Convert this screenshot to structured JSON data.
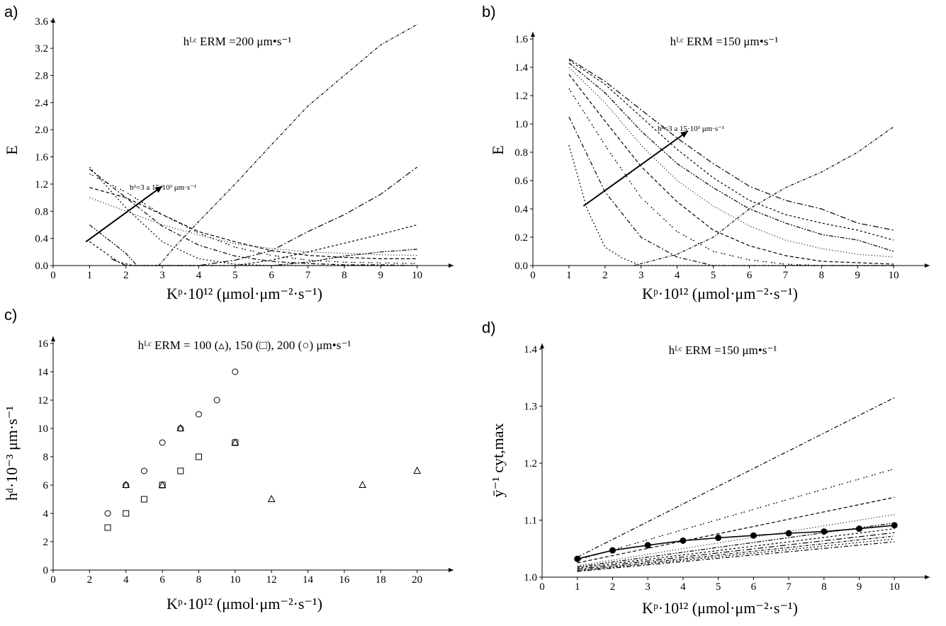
{
  "chart_data": [
    {
      "id": "a",
      "panel_label": "a)",
      "type": "line",
      "title": "hᴸᶜ ERM =200 μm•s⁻¹",
      "xlabel": "Kᵖ·10¹² (μmol·μm⁻²·s⁻¹)",
      "ylabel": "E",
      "xlim": [
        0,
        11
      ],
      "ylim": [
        0,
        3.65
      ],
      "xticks": [
        0,
        1,
        2,
        3,
        4,
        5,
        6,
        7,
        8,
        9,
        10
      ],
      "yticks": [
        0.0,
        0.4,
        0.8,
        1.2,
        1.6,
        2.0,
        2.4,
        2.8,
        3.2,
        3.6
      ],
      "ytick_decimals": 1,
      "annotation": "hᵈ=3 a 15·10³ μm·s⁻¹",
      "arrow": {
        "from": [
          0.9,
          0.35
        ],
        "to": [
          3.0,
          1.17
        ]
      },
      "series": [
        {
          "values": [
            [
              1,
              1.45
            ],
            [
              2,
              0.85
            ],
            [
              3,
              0.35
            ],
            [
              4,
              0.1
            ],
            [
              5,
              0.02
            ],
            [
              6,
              0.0
            ],
            [
              7,
              0.0
            ],
            [
              8,
              0.0
            ],
            [
              9,
              0.0
            ],
            [
              10,
              0.0
            ]
          ]
        },
        {
          "values": [
            [
              1,
              1.42
            ],
            [
              2,
              1.0
            ],
            [
              3,
              0.58
            ],
            [
              4,
              0.3
            ],
            [
              5,
              0.14
            ],
            [
              6,
              0.06
            ],
            [
              7,
              0.03
            ],
            [
              8,
              0.01
            ],
            [
              9,
              0.01
            ],
            [
              10,
              0.0
            ]
          ]
        },
        {
          "values": [
            [
              1,
              1.35
            ],
            [
              2,
              1.08
            ],
            [
              3,
              0.75
            ],
            [
              4,
              0.48
            ],
            [
              5,
              0.27
            ],
            [
              6,
              0.15
            ],
            [
              7,
              0.08
            ],
            [
              8,
              0.05
            ],
            [
              9,
              0.04
            ],
            [
              10,
              0.03
            ]
          ]
        },
        {
          "values": [
            [
              1,
              1.15
            ],
            [
              2,
              1.0
            ],
            [
              3,
              0.75
            ],
            [
              4,
              0.5
            ],
            [
              5,
              0.35
            ],
            [
              6,
              0.22
            ],
            [
              7,
              0.15
            ],
            [
              8,
              0.12
            ],
            [
              9,
              0.1
            ],
            [
              10,
              0.1
            ]
          ]
        },
        {
          "values": [
            [
              1,
              1.0
            ],
            [
              2,
              0.8
            ],
            [
              3,
              0.6
            ],
            [
              4,
              0.45
            ],
            [
              5,
              0.32
            ],
            [
              6,
              0.25
            ],
            [
              7,
              0.2
            ],
            [
              8,
              0.18
            ],
            [
              9,
              0.16
            ],
            [
              10,
              0.15
            ]
          ]
        },
        {
          "values": [
            [
              1,
              0.6
            ],
            [
              2,
              0.18
            ],
            [
              2.3,
              0.0
            ],
            [
              5,
              0.0
            ],
            [
              6,
              0.0
            ],
            [
              7,
              0.05
            ],
            [
              8,
              0.14
            ],
            [
              9,
              0.2
            ],
            [
              10,
              0.24
            ]
          ]
        },
        {
          "values": [
            [
              1,
              0.35
            ],
            [
              1.8,
              0.05
            ],
            [
              2.2,
              0.0
            ],
            [
              5,
              0.0
            ],
            [
              6,
              0.08
            ],
            [
              7,
              0.2
            ],
            [
              8,
              0.33
            ],
            [
              9,
              0.46
            ],
            [
              10,
              0.6
            ]
          ]
        },
        {
          "values": [
            [
              1.6,
              0.1
            ],
            [
              2,
              0.0
            ],
            [
              4,
              0.0
            ],
            [
              5,
              0.08
            ],
            [
              6,
              0.22
            ],
            [
              7,
              0.5
            ],
            [
              8,
              0.75
            ],
            [
              9,
              1.05
            ],
            [
              10,
              1.45
            ]
          ]
        },
        {
          "values": [
            [
              2.9,
              0.0
            ],
            [
              3.3,
              0.25
            ],
            [
              4,
              0.65
            ],
            [
              5,
              1.2
            ],
            [
              6,
              1.78
            ],
            [
              7,
              2.35
            ],
            [
              8,
              2.8
            ],
            [
              9,
              3.25
            ],
            [
              10,
              3.55
            ]
          ]
        }
      ]
    },
    {
      "id": "b",
      "panel_label": "b)",
      "type": "line",
      "title": "hᴸᶜ ERM =150 μm•s⁻¹",
      "xlabel": "Kᵖ·10¹² (μmol·μm⁻²·s⁻¹)",
      "ylabel": "E",
      "xlim": [
        0,
        11
      ],
      "ylim": [
        0,
        1.65
      ],
      "xticks": [
        0,
        1,
        2,
        3,
        4,
        5,
        6,
        7,
        8,
        9,
        10
      ],
      "yticks": [
        0.0,
        0.2,
        0.4,
        0.6,
        0.8,
        1.0,
        1.2,
        1.4,
        1.6
      ],
      "ytick_decimals": 1,
      "annotation": "hᵈ=3 a 15·10³ μm·s⁻¹",
      "arrow": {
        "from": [
          1.4,
          0.42
        ],
        "to": [
          4.3,
          0.95
        ]
      },
      "series": [
        {
          "values": [
            [
              1,
              0.85
            ],
            [
              1.5,
              0.4
            ],
            [
              2,
              0.13
            ],
            [
              2.5,
              0.05
            ],
            [
              3,
              0.0
            ],
            [
              10,
              0.0
            ]
          ]
        },
        {
          "values": [
            [
              1,
              1.05
            ],
            [
              2,
              0.52
            ],
            [
              3,
              0.2
            ],
            [
              4,
              0.06
            ],
            [
              5,
              0.0
            ],
            [
              10,
              0.0
            ]
          ]
        },
        {
          "values": [
            [
              1,
              1.25
            ],
            [
              2,
              0.85
            ],
            [
              3,
              0.48
            ],
            [
              4,
              0.24
            ],
            [
              5,
              0.1
            ],
            [
              6,
              0.04
            ],
            [
              7,
              0.01
            ],
            [
              8,
              0.0
            ],
            [
              10,
              0.0
            ]
          ]
        },
        {
          "values": [
            [
              1,
              1.35
            ],
            [
              2,
              1.02
            ],
            [
              3,
              0.7
            ],
            [
              4,
              0.45
            ],
            [
              5,
              0.25
            ],
            [
              6,
              0.14
            ],
            [
              7,
              0.07
            ],
            [
              8,
              0.03
            ],
            [
              9,
              0.02
            ],
            [
              10,
              0.01
            ]
          ]
        },
        {
          "values": [
            [
              1,
              1.4
            ],
            [
              2,
              1.15
            ],
            [
              3,
              0.85
            ],
            [
              4,
              0.6
            ],
            [
              5,
              0.42
            ],
            [
              6,
              0.28
            ],
            [
              7,
              0.18
            ],
            [
              8,
              0.12
            ],
            [
              9,
              0.08
            ],
            [
              10,
              0.06
            ]
          ]
        },
        {
          "values": [
            [
              1,
              1.43
            ],
            [
              2,
              1.22
            ],
            [
              3,
              0.95
            ],
            [
              4,
              0.72
            ],
            [
              5,
              0.55
            ],
            [
              6,
              0.4
            ],
            [
              7,
              0.3
            ],
            [
              8,
              0.22
            ],
            [
              9,
              0.18
            ],
            [
              10,
              0.1
            ]
          ]
        },
        {
          "values": [
            [
              1,
              1.45
            ],
            [
              2,
              1.28
            ],
            [
              3,
              1.05
            ],
            [
              4,
              0.82
            ],
            [
              5,
              0.62
            ],
            [
              6,
              0.46
            ],
            [
              7,
              0.36
            ],
            [
              8,
              0.3
            ],
            [
              9,
              0.25
            ],
            [
              10,
              0.18
            ]
          ]
        },
        {
          "values": [
            [
              1,
              1.46
            ],
            [
              2,
              1.3
            ],
            [
              3,
              1.1
            ],
            [
              4,
              0.9
            ],
            [
              5,
              0.72
            ],
            [
              6,
              0.56
            ],
            [
              7,
              0.46
            ],
            [
              8,
              0.4
            ],
            [
              9,
              0.3
            ],
            [
              10,
              0.25
            ]
          ]
        },
        {
          "values": [
            [
              2.8,
              0.0
            ],
            [
              4,
              0.08
            ],
            [
              5,
              0.2
            ],
            [
              6,
              0.4
            ],
            [
              7,
              0.55
            ],
            [
              8,
              0.66
            ],
            [
              9,
              0.8
            ],
            [
              10,
              0.98
            ]
          ]
        }
      ]
    },
    {
      "id": "c",
      "panel_label": "c)",
      "type": "scatter",
      "title": "hᴸᶜ ERM = 100 (▵), 150 (□), 200 (○) μm•s⁻¹",
      "xlabel": "Kᵖ·10¹² (μmol·μm⁻²·s⁻¹)",
      "ylabel": "hᵈ·10⁻³ μm·s⁻¹",
      "xlim": [
        0,
        22
      ],
      "ylim": [
        0,
        16.5
      ],
      "xticks": [
        0,
        2,
        4,
        6,
        8,
        10,
        12,
        14,
        16,
        18,
        20
      ],
      "yticks": [
        0,
        2,
        4,
        6,
        8,
        10,
        12,
        14,
        16
      ],
      "ytick_decimals": 0,
      "series": [
        {
          "marker": "triangle",
          "values": [
            [
              4,
              6
            ],
            [
              6,
              6
            ],
            [
              7,
              10
            ],
            [
              10,
              9
            ],
            [
              12,
              5
            ],
            [
              17,
              6
            ],
            [
              20,
              7
            ]
          ]
        },
        {
          "marker": "square",
          "values": [
            [
              3,
              3
            ],
            [
              4,
              4
            ],
            [
              5,
              5
            ],
            [
              6,
              6
            ],
            [
              7,
              7
            ],
            [
              8,
              8
            ],
            [
              10,
              9
            ]
          ]
        },
        {
          "marker": "circle",
          "values": [
            [
              3,
              4
            ],
            [
              4,
              6
            ],
            [
              5,
              7
            ],
            [
              6,
              9
            ],
            [
              7,
              10
            ],
            [
              8,
              11
            ],
            [
              9,
              12
            ],
            [
              10,
              14
            ]
          ]
        }
      ]
    },
    {
      "id": "d",
      "panel_label": "d)",
      "type": "line",
      "title": "hᴸᶜ ERM =150 μm•s⁻¹",
      "xlabel": "Kᵖ·10¹² (μmol·μm⁻²·s⁻¹)",
      "ylabel": "ȳ⁻¹ cyt,max",
      "xlim": [
        0,
        11
      ],
      "ylim": [
        1.0,
        1.41
      ],
      "xticks": [
        0,
        1,
        2,
        3,
        4,
        5,
        6,
        7,
        8,
        9,
        10
      ],
      "yticks": [
        1.0,
        1.1,
        1.2,
        1.3,
        1.4
      ],
      "ytick_decimals": 1,
      "series": [
        {
          "style": "solid-dots",
          "values": [
            [
              1,
              1.032
            ],
            [
              2,
              1.047
            ],
            [
              3,
              1.056
            ],
            [
              4,
              1.064
            ],
            [
              5,
              1.069
            ],
            [
              6,
              1.073
            ],
            [
              7,
              1.077
            ],
            [
              8,
              1.08
            ],
            [
              9,
              1.085
            ],
            [
              10,
              1.091
            ]
          ]
        },
        {
          "values": [
            [
              1,
              1.035
            ],
            [
              10,
              1.315
            ]
          ]
        },
        {
          "values": [
            [
              1,
              1.03
            ],
            [
              10,
              1.19
            ]
          ]
        },
        {
          "values": [
            [
              1,
              1.025
            ],
            [
              10,
              1.14
            ]
          ]
        },
        {
          "values": [
            [
              1,
              1.02
            ],
            [
              10,
              1.11
            ]
          ]
        },
        {
          "values": [
            [
              1,
              1.018
            ],
            [
              10,
              1.095
            ]
          ]
        },
        {
          "values": [
            [
              1,
              1.016
            ],
            [
              10,
              1.085
            ]
          ]
        },
        {
          "values": [
            [
              1,
              1.014
            ],
            [
              10,
              1.078
            ]
          ]
        },
        {
          "values": [
            [
              1,
              1.012
            ],
            [
              10,
              1.072
            ]
          ]
        },
        {
          "values": [
            [
              1,
              1.011
            ],
            [
              10,
              1.067
            ]
          ]
        },
        {
          "values": [
            [
              1,
              1.01
            ],
            [
              10,
              1.062
            ]
          ]
        }
      ]
    }
  ]
}
